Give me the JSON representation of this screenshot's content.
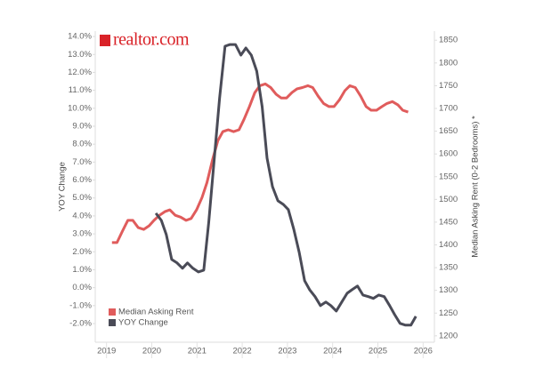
{
  "chart_data": {
    "type": "line",
    "logo": "realtor.com",
    "y_label": "YOY Change",
    "y2_label": "Median Asking Rent (0-2 Bedrooms) *",
    "xlim": [
      2018.75,
      2026.25
    ],
    "xticks": [
      2019,
      2020,
      2021,
      2022,
      2023,
      2024,
      2025,
      2026
    ],
    "ylim": [
      -3.04,
      14.3
    ],
    "yticks": [
      {
        "value": 14,
        "label": "14.0%"
      },
      {
        "value": 13,
        "label": "13.0%"
      },
      {
        "value": 12,
        "label": "12.0%"
      },
      {
        "value": 11,
        "label": "11.0%"
      },
      {
        "value": 10,
        "label": "10.0%"
      },
      {
        "value": 9,
        "label": "9.0%"
      },
      {
        "value": 8,
        "label": "8.0%"
      },
      {
        "value": 7,
        "label": "7.0%"
      },
      {
        "value": 6,
        "label": "6.0%"
      },
      {
        "value": 5,
        "label": "5.0%"
      },
      {
        "value": 4,
        "label": "4.0%"
      },
      {
        "value": 3,
        "label": "3.0%"
      },
      {
        "value": 2,
        "label": "2.0%"
      },
      {
        "value": 1,
        "label": "1.0%"
      },
      {
        "value": 0,
        "label": "0.0%"
      },
      {
        "value": -1,
        "label": "-1.0%"
      },
      {
        "value": -2,
        "label": "-2.0%"
      }
    ],
    "y2lim": [
      1186,
      1870
    ],
    "y2ticks": [
      1200,
      1250,
      1300,
      1350,
      1400,
      1450,
      1500,
      1550,
      1600,
      1650,
      1700,
      1750,
      1800,
      1850
    ],
    "legend": "lower left",
    "series": [
      {
        "name": "Median Asking Rent",
        "color": "#e05c5c",
        "axis": "y2",
        "x": [
          2019.12,
          2019.23,
          2019.35,
          2019.47,
          2019.58,
          2019.7,
          2019.82,
          2019.94,
          2020.05,
          2020.17,
          2020.29,
          2020.4,
          2020.52,
          2020.64,
          2020.76,
          2020.87,
          2020.99,
          2021.11,
          2021.22,
          2021.34,
          2021.46,
          2021.57,
          2021.69,
          2021.81,
          2021.93,
          2022.04,
          2022.16,
          2022.28,
          2022.39,
          2022.51,
          2022.63,
          2022.75,
          2022.86,
          2022.98,
          2023.1,
          2023.21,
          2023.33,
          2023.45,
          2023.56,
          2023.68,
          2023.8,
          2023.92,
          2024.03,
          2024.15,
          2024.27,
          2024.38,
          2024.5,
          2024.62,
          2024.74,
          2024.85,
          2024.97,
          2025.09,
          2025.2,
          2025.32,
          2025.44,
          2025.55,
          2025.67
        ],
        "values": [
          1405,
          1405,
          1430,
          1454,
          1454,
          1438,
          1434,
          1442,
          1454,
          1465,
          1473,
          1477,
          1465,
          1461,
          1454,
          1458,
          1477,
          1504,
          1537,
          1586,
          1629,
          1649,
          1653,
          1649,
          1653,
          1676,
          1704,
          1735,
          1750,
          1754,
          1746,
          1731,
          1723,
          1723,
          1735,
          1743,
          1746,
          1750,
          1746,
          1727,
          1711,
          1704,
          1704,
          1719,
          1739,
          1750,
          1746,
          1727,
          1704,
          1696,
          1696,
          1704,
          1711,
          1715,
          1708,
          1696,
          1692
        ]
      },
      {
        "name": "YOY Change",
        "color": "#4a4b57",
        "x": [
          2020.09,
          2020.21,
          2020.32,
          2020.44,
          2020.56,
          2020.68,
          2020.79,
          2020.91,
          2021.03,
          2021.15,
          2021.26,
          2021.38,
          2021.5,
          2021.62,
          2021.73,
          2021.85,
          2021.97,
          2022.08,
          2022.2,
          2022.32,
          2022.44,
          2022.55,
          2022.67,
          2022.79,
          2022.91,
          2023.02,
          2023.14,
          2023.26,
          2023.38,
          2023.49,
          2023.61,
          2023.73,
          2023.85,
          2023.96,
          2024.08,
          2024.2,
          2024.32,
          2024.43,
          2024.55,
          2024.67,
          2024.79,
          2024.9,
          2025.02,
          2025.14,
          2025.26,
          2025.37,
          2025.49,
          2025.61,
          2025.73,
          2025.84
        ],
        "values": [
          4.15,
          3.75,
          2.96,
          1.57,
          1.38,
          1.08,
          1.38,
          1.08,
          0.88,
          0.98,
          3.65,
          7.12,
          10.58,
          13.46,
          13.55,
          13.55,
          12.96,
          13.36,
          12.96,
          12.07,
          10.09,
          7.22,
          5.63,
          4.84,
          4.64,
          4.35,
          3.26,
          1.97,
          0.39,
          -0.11,
          -0.5,
          -1.0,
          -0.8,
          -1.0,
          -1.3,
          -0.8,
          -0.31,
          -0.11,
          0.09,
          -0.41,
          -0.5,
          -0.6,
          -0.41,
          -0.5,
          -1.0,
          -1.5,
          -1.99,
          -2.09,
          -2.09,
          -1.6
        ]
      }
    ]
  }
}
